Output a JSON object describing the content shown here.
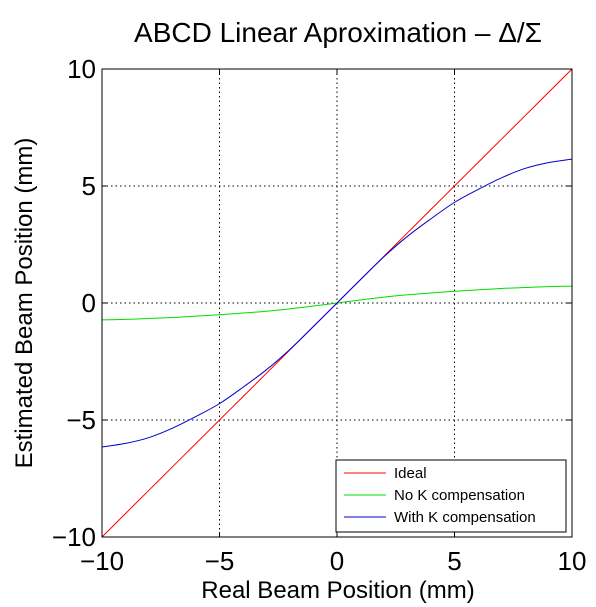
{
  "chart_data": {
    "type": "line",
    "title": "ABCD Linear Aproximation – Δ/Σ",
    "xlabel": "Real Beam Position (mm)",
    "ylabel": "Estimated Beam Position (mm)",
    "xlim": [
      -10,
      10
    ],
    "ylim": [
      -10,
      10
    ],
    "x_ticks": [
      -10,
      -5,
      0,
      5,
      10
    ],
    "y_ticks": [
      -10,
      -5,
      0,
      5,
      10
    ],
    "x_tick_labels": [
      "−10",
      "−5",
      "0",
      "5",
      "10"
    ],
    "y_tick_labels": [
      "−10",
      "−5",
      "0",
      "5",
      "10"
    ],
    "grid": true,
    "legend_position": "bottom-right",
    "x": [
      -10,
      -9,
      -8,
      -7,
      -6,
      -5,
      -4,
      -3,
      -2,
      -1,
      0,
      1,
      2,
      3,
      4,
      5,
      6,
      7,
      8,
      9,
      10
    ],
    "series": [
      {
        "name": "Ideal",
        "color": "#ff0000",
        "values": [
          -10,
          -9,
          -8,
          -7,
          -6,
          -5,
          -4,
          -3,
          -2,
          -1,
          0,
          1,
          2,
          3,
          4,
          5,
          6,
          7,
          8,
          9,
          10
        ]
      },
      {
        "name": "No K compensation",
        "color": "#00dd00",
        "values": [
          -0.72,
          -0.7,
          -0.66,
          -0.62,
          -0.56,
          -0.5,
          -0.43,
          -0.35,
          -0.25,
          -0.13,
          0,
          0.13,
          0.25,
          0.35,
          0.43,
          0.5,
          0.56,
          0.62,
          0.66,
          0.7,
          0.72
        ]
      },
      {
        "name": "With K compensation",
        "color": "#0000cc",
        "values": [
          -6.15,
          -6.0,
          -5.75,
          -5.35,
          -4.85,
          -4.3,
          -3.6,
          -2.85,
          -1.98,
          -1.0,
          0,
          1.0,
          1.98,
          2.85,
          3.6,
          4.3,
          4.85,
          5.35,
          5.75,
          6.0,
          6.15
        ]
      }
    ]
  }
}
